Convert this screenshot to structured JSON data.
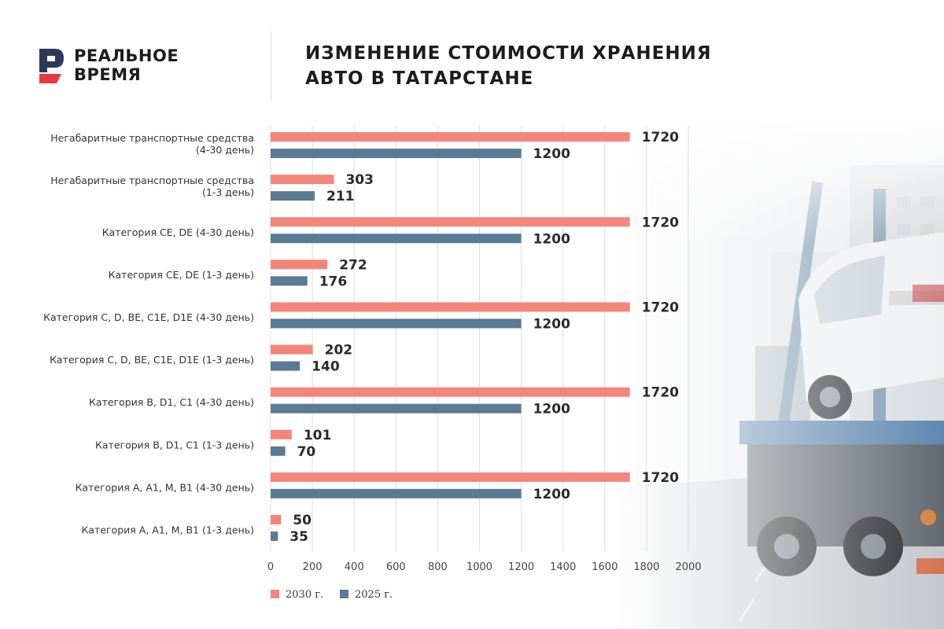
{
  "brand": {
    "line1": "РЕАЛЬНОЕ",
    "line2": "ВРЕМЯ",
    "mark_color": "#2c3a55",
    "accent_color": "#e23a3f"
  },
  "title": {
    "line1": "ИЗМЕНЕНИЕ СТОИМОСТИ ХРАНЕНИЯ",
    "line2": "АВТО В ТАТАРСТАНЕ"
  },
  "chart_data": {
    "type": "bar",
    "orientation": "horizontal",
    "title": "ИЗМЕНЕНИЕ СТОИМОСТИ ХРАНЕНИЯ АВТО В ТАТАРСТАНЕ",
    "xlabel": "",
    "ylabel": "",
    "xlim": [
      0,
      2000
    ],
    "xticks": [
      "0",
      "200",
      "400",
      "600",
      "800",
      "1000",
      "1200",
      "1400",
      "1600",
      "1800",
      "2000"
    ],
    "grid": "vertical",
    "legend_position": "bottom-left",
    "categories": [
      [
        "Негабаритные транспортные средства",
        "(4-30 день)"
      ],
      [
        "Негабаритные транспортные средства",
        "(1-3 день)"
      ],
      [
        "Категория CE, DE (4-30 день)"
      ],
      [
        "Категория CE, DE (1-3 день)"
      ],
      [
        "Категория C, D, BE, C1E, D1E (4-30 день)"
      ],
      [
        "Категория C, D, BE, C1E, D1E (1-3 день)"
      ],
      [
        "Категория B, D1, C1 (4-30 день)"
      ],
      [
        "Категория B, D1, C1 (1-3 день)"
      ],
      [
        "Категория A, A1, M, B1 (4-30 день)"
      ],
      [
        "Категория A, A1, M, B1 (1-3 день)"
      ]
    ],
    "series": [
      {
        "name": "2030 г.",
        "color": "#f4857a",
        "values": [
          1720,
          303,
          1720,
          272,
          1720,
          202,
          1720,
          101,
          1720,
          50
        ]
      },
      {
        "name": "2025 г.",
        "color": "#5b7a94",
        "values": [
          1200,
          211,
          1200,
          176,
          1200,
          140,
          1200,
          70,
          1200,
          35
        ]
      }
    ]
  }
}
